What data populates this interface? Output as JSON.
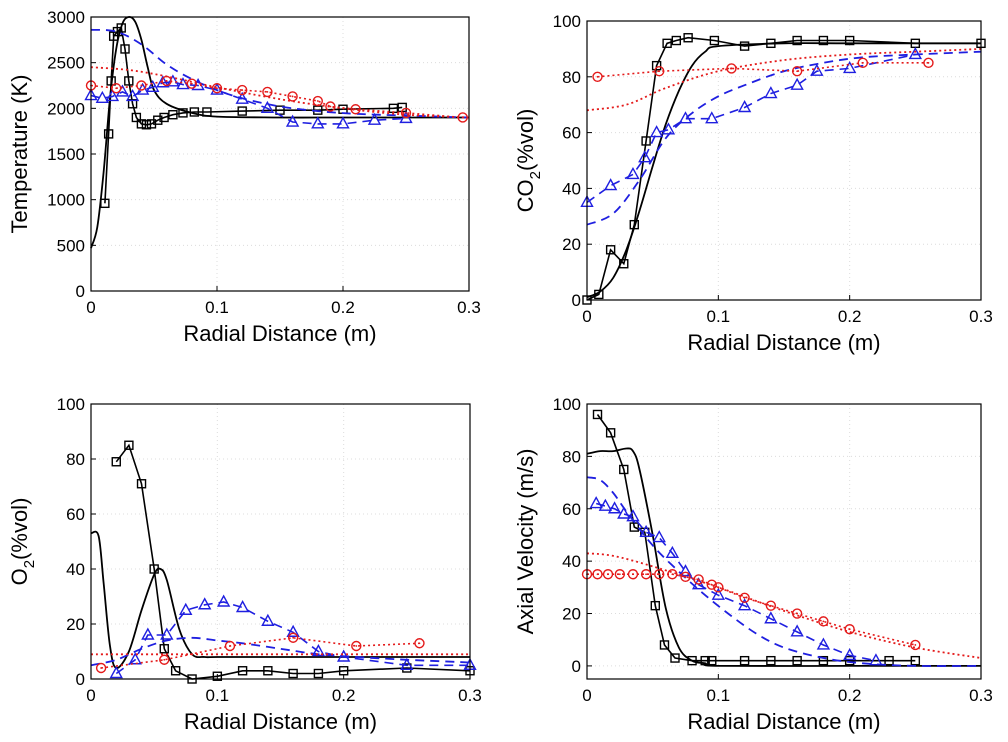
{
  "chart_data": [
    {
      "id": "temperature",
      "type": "line",
      "xlabel": "Radial Distance (m)",
      "ylabel": "Temperature (K)",
      "xlim": [
        0,
        0.3
      ],
      "ylim": [
        0,
        3000
      ],
      "xticks": [
        0,
        0.1,
        0.2,
        0.3
      ],
      "xtick_labels": [
        "0",
        "0.1",
        "0.2",
        "0.3"
      ],
      "yticks": [
        0,
        500,
        1000,
        1500,
        2000,
        2500,
        3000
      ],
      "ytick_labels": [
        "0",
        "500",
        "1000",
        "1500",
        "2000",
        "2500",
        "3000"
      ],
      "grid": true,
      "series": [
        {
          "style": "black-solid-line",
          "color": "#000000",
          "dash": "solid",
          "marker": "none",
          "x": [
            0,
            0.005,
            0.01,
            0.015,
            0.02,
            0.025,
            0.03,
            0.035,
            0.04,
            0.045,
            0.05,
            0.06,
            0.08,
            0.1,
            0.15,
            0.2,
            0.25,
            0.3
          ],
          "y": [
            470,
            700,
            1300,
            2100,
            2650,
            2930,
            3000,
            2950,
            2750,
            2450,
            2200,
            2050,
            1950,
            1910,
            1900,
            1900,
            1900,
            1900
          ]
        },
        {
          "style": "black-square-markers",
          "color": "#000000",
          "dash": "solid",
          "marker": "square",
          "x": [
            0.011,
            0.014,
            0.016,
            0.018,
            0.021,
            0.024,
            0.027,
            0.03,
            0.033,
            0.036,
            0.04,
            0.044,
            0.048,
            0.053,
            0.058,
            0.065,
            0.073,
            0.082,
            0.092,
            0.12,
            0.15,
            0.18,
            0.2,
            0.24,
            0.247
          ],
          "y": [
            960,
            1720,
            2300,
            2790,
            2840,
            2880,
            2650,
            2300,
            2050,
            1900,
            1830,
            1820,
            1830,
            1870,
            1900,
            1930,
            1950,
            1960,
            1960,
            1970,
            1980,
            1980,
            1990,
            2000,
            2010
          ]
        },
        {
          "style": "blue-dashed-line",
          "color": "#1f1fe0",
          "dash": "dashed",
          "marker": "none",
          "x": [
            0,
            0.02,
            0.04,
            0.06,
            0.08,
            0.1,
            0.12,
            0.15,
            0.18,
            0.21,
            0.25,
            0.3
          ],
          "y": [
            2860,
            2840,
            2700,
            2480,
            2320,
            2200,
            2110,
            2020,
            1970,
            1940,
            1920,
            1900
          ]
        },
        {
          "style": "blue-triangle-markers",
          "color": "#1f1fe0",
          "dash": "dashed",
          "marker": "triangle",
          "x": [
            0,
            0.009,
            0.017,
            0.025,
            0.033,
            0.041,
            0.049,
            0.057,
            0.065,
            0.073,
            0.085,
            0.1,
            0.12,
            0.14,
            0.16,
            0.18,
            0.2,
            0.225,
            0.25
          ],
          "y": [
            2140,
            2110,
            2130,
            2180,
            2130,
            2200,
            2230,
            2280,
            2290,
            2260,
            2250,
            2200,
            2100,
            2000,
            1850,
            1830,
            1830,
            1870,
            1890
          ]
        },
        {
          "style": "red-dotted-line",
          "color": "#e41a1a",
          "dash": "dotted",
          "marker": "none",
          "x": [
            0,
            0.03,
            0.06,
            0.1,
            0.15,
            0.2,
            0.25,
            0.3
          ],
          "y": [
            2450,
            2420,
            2350,
            2230,
            2100,
            2000,
            1930,
            1900
          ]
        },
        {
          "style": "red-circle-markers",
          "color": "#e41a1a",
          "dash": "dotted",
          "marker": "circle",
          "x": [
            0,
            0.02,
            0.04,
            0.06,
            0.08,
            0.1,
            0.12,
            0.14,
            0.16,
            0.18,
            0.19,
            0.21,
            0.25,
            0.295
          ],
          "y": [
            2250,
            2220,
            2250,
            2300,
            2270,
            2220,
            2200,
            2180,
            2130,
            2080,
            2020,
            1990,
            1950,
            1900
          ]
        }
      ]
    },
    {
      "id": "co2",
      "type": "line",
      "xlabel": "Radial Distance (m)",
      "ylabel_main": "CO",
      "ylabel_sub": "2",
      "ylabel_rest": "(%vol)",
      "xlim": [
        0,
        0.3
      ],
      "ylim": [
        0,
        100
      ],
      "xticks": [
        0,
        0.1,
        0.2,
        0.3
      ],
      "xtick_labels": [
        "0",
        "0.1",
        "0.2",
        "0.3"
      ],
      "yticks": [
        0,
        20,
        40,
        60,
        80,
        100
      ],
      "ytick_labels": [
        "0",
        "20",
        "40",
        "60",
        "80",
        "100"
      ],
      "grid": true,
      "series": [
        {
          "style": "black-solid-line",
          "color": "#000000",
          "dash": "solid",
          "marker": "none",
          "x": [
            0,
            0.01,
            0.02,
            0.03,
            0.04,
            0.05,
            0.06,
            0.07,
            0.08,
            0.09,
            0.1,
            0.15,
            0.2,
            0.3
          ],
          "y": [
            1,
            3,
            8,
            18,
            32,
            48,
            63,
            75,
            84,
            89,
            91,
            92,
            92,
            92
          ]
        },
        {
          "style": "black-square-markers",
          "color": "#000000",
          "dash": "solid",
          "marker": "square",
          "x": [
            0,
            0.009,
            0.018,
            0.028,
            0.036,
            0.045,
            0.053,
            0.061,
            0.068,
            0.077,
            0.097,
            0.12,
            0.14,
            0.16,
            0.18,
            0.2,
            0.25,
            0.3
          ],
          "y": [
            0,
            2,
            18,
            13,
            27,
            57,
            84,
            92,
            93,
            94,
            93,
            91,
            92,
            93,
            93,
            93,
            92,
            92
          ]
        },
        {
          "style": "blue-dashed-line",
          "color": "#1f1fe0",
          "dash": "dashed",
          "marker": "none",
          "x": [
            0,
            0.02,
            0.04,
            0.06,
            0.08,
            0.1,
            0.12,
            0.15,
            0.18,
            0.21,
            0.25,
            0.3
          ],
          "y": [
            27,
            31,
            43,
            58,
            67,
            73,
            77,
            82,
            85,
            87,
            88,
            89
          ]
        },
        {
          "style": "blue-triangle-markers",
          "color": "#1f1fe0",
          "dash": "dashed",
          "marker": "triangle",
          "x": [
            0,
            0.018,
            0.035,
            0.044,
            0.053,
            0.062,
            0.075,
            0.095,
            0.12,
            0.14,
            0.16,
            0.175,
            0.2,
            0.25
          ],
          "y": [
            35,
            41,
            45,
            51,
            60,
            61,
            65,
            65,
            69,
            74,
            77,
            82,
            83,
            88
          ]
        },
        {
          "style": "red-dotted-line",
          "color": "#e41a1a",
          "dash": "dotted",
          "marker": "none",
          "x": [
            0,
            0.03,
            0.06,
            0.1,
            0.15,
            0.2,
            0.25,
            0.3
          ],
          "y": [
            68,
            70,
            76,
            82,
            86,
            88,
            89,
            90
          ]
        },
        {
          "style": "red-circle-markers",
          "color": "#e41a1a",
          "dash": "dotted",
          "marker": "circle",
          "x": [
            0.008,
            0.055,
            0.11,
            0.16,
            0.21,
            0.26
          ],
          "y": [
            80,
            82,
            83,
            82,
            85,
            85
          ]
        }
      ]
    },
    {
      "id": "o2",
      "type": "line",
      "xlabel": "Radial Distance (m)",
      "ylabel_main": "O",
      "ylabel_sub": "2",
      "ylabel_rest": "(%vol)",
      "xlim": [
        0,
        0.3
      ],
      "ylim": [
        0,
        100
      ],
      "xticks": [
        0,
        0.1,
        0.2,
        0.3
      ],
      "xtick_labels": [
        "0",
        "0.1",
        "0.2",
        "0.3"
      ],
      "yticks": [
        0,
        20,
        40,
        60,
        80,
        100
      ],
      "ytick_labels": [
        "0",
        "20",
        "40",
        "60",
        "80",
        "100"
      ],
      "grid": true,
      "series": [
        {
          "style": "black-solid-line",
          "color": "#000000",
          "dash": "solid",
          "marker": "none",
          "x": [
            0,
            0.006,
            0.01,
            0.015,
            0.02,
            0.03,
            0.04,
            0.05,
            0.055,
            0.06,
            0.07,
            0.08,
            0.09,
            0.1,
            0.15,
            0.2,
            0.25,
            0.3
          ],
          "y": [
            53,
            52,
            35,
            12,
            4,
            10,
            25,
            38,
            40,
            36,
            18,
            9,
            8,
            8,
            8,
            8,
            8,
            8
          ]
        },
        {
          "style": "black-square-markers",
          "color": "#000000",
          "dash": "solid",
          "marker": "square",
          "x": [
            0.02,
            0.03,
            0.04,
            0.05,
            0.058,
            0.067,
            0.08,
            0.1,
            0.12,
            0.14,
            0.16,
            0.18,
            0.2,
            0.25,
            0.3
          ],
          "y": [
            79,
            85,
            71,
            40,
            11,
            3,
            0,
            1,
            3,
            3,
            2,
            2,
            3,
            4,
            3
          ]
        },
        {
          "style": "blue-dashed-line",
          "color": "#1f1fe0",
          "dash": "dashed",
          "marker": "none",
          "x": [
            0,
            0.02,
            0.04,
            0.06,
            0.08,
            0.1,
            0.12,
            0.15,
            0.18,
            0.21,
            0.25,
            0.3
          ],
          "y": [
            5,
            7,
            11,
            14,
            15,
            14,
            13,
            11,
            9,
            8,
            7,
            6
          ]
        },
        {
          "style": "blue-triangle-markers",
          "color": "#1f1fe0",
          "dash": "dashed",
          "marker": "triangle",
          "x": [
            0.02,
            0.035,
            0.045,
            0.06,
            0.075,
            0.09,
            0.105,
            0.12,
            0.14,
            0.16,
            0.18,
            0.2,
            0.25,
            0.3
          ],
          "y": [
            2,
            7,
            16,
            16,
            25,
            27,
            28,
            26,
            21,
            17,
            10,
            8,
            5,
            5
          ]
        },
        {
          "style": "red-dotted-line",
          "color": "#e41a1a",
          "dash": "dotted",
          "marker": "none",
          "x": [
            0,
            0.05,
            0.1,
            0.15,
            0.2,
            0.25,
            0.3
          ],
          "y": [
            9,
            9,
            9,
            9,
            9,
            9,
            9
          ]
        },
        {
          "style": "red-circle-markers",
          "color": "#e41a1a",
          "dash": "dotted",
          "marker": "circle",
          "x": [
            0.008,
            0.058,
            0.11,
            0.16,
            0.21,
            0.26
          ],
          "y": [
            4,
            7,
            12,
            15,
            12,
            13
          ]
        }
      ]
    },
    {
      "id": "axial-velocity",
      "type": "line",
      "xlabel": "Radial Distance (m)",
      "ylabel": "Axial Velocity (m/s)",
      "xlim": [
        0,
        0.3
      ],
      "ylim": [
        -5,
        100
      ],
      "xticks": [
        0,
        0.1,
        0.2,
        0.3
      ],
      "xtick_labels": [
        "0",
        "0.1",
        "0.2",
        "0.3"
      ],
      "yticks": [
        0,
        20,
        40,
        60,
        80,
        100
      ],
      "ytick_labels": [
        "0",
        "20",
        "40",
        "60",
        "80",
        "100"
      ],
      "grid": true,
      "series": [
        {
          "style": "black-solid-line",
          "color": "#000000",
          "dash": "solid",
          "marker": "none",
          "x": [
            0,
            0.01,
            0.02,
            0.03,
            0.035,
            0.04,
            0.05,
            0.06,
            0.07,
            0.08,
            0.09,
            0.1,
            0.2,
            0.3
          ],
          "y": [
            81,
            82,
            82,
            83,
            82,
            75,
            50,
            22,
            7,
            2,
            1,
            0,
            0,
            0
          ]
        },
        {
          "style": "black-square-markers",
          "color": "#000000",
          "dash": "solid",
          "marker": "square",
          "x": [
            0.008,
            0.018,
            0.028,
            0.036,
            0.044,
            0.052,
            0.059,
            0.067,
            0.08,
            0.09,
            0.095,
            0.12,
            0.14,
            0.16,
            0.18,
            0.2,
            0.23,
            0.25
          ],
          "y": [
            96,
            89,
            75,
            53,
            51,
            23,
            8,
            3,
            2,
            2,
            2,
            2,
            2,
            2,
            2,
            2,
            2,
            2
          ]
        },
        {
          "style": "blue-dashed-line",
          "color": "#1f1fe0",
          "dash": "dashed",
          "marker": "none",
          "x": [
            0,
            0.01,
            0.02,
            0.03,
            0.05,
            0.07,
            0.09,
            0.11,
            0.13,
            0.15,
            0.18,
            0.21,
            0.25,
            0.3
          ],
          "y": [
            72,
            71,
            66,
            59,
            46,
            36,
            27,
            19,
            12,
            7,
            3,
            1,
            0,
            0
          ]
        },
        {
          "style": "blue-triangle-markers",
          "color": "#1f1fe0",
          "dash": "dashed",
          "marker": "triangle",
          "x": [
            0.007,
            0.014,
            0.021,
            0.028,
            0.035,
            0.045,
            0.055,
            0.065,
            0.075,
            0.085,
            0.1,
            0.12,
            0.14,
            0.16,
            0.18,
            0.2,
            0.22
          ],
          "y": [
            62,
            61,
            60,
            58,
            57,
            51,
            49,
            43,
            36,
            31,
            27,
            23,
            18,
            13,
            8,
            4,
            2
          ]
        },
        {
          "style": "red-dotted-line",
          "color": "#e41a1a",
          "dash": "dotted",
          "marker": "none",
          "x": [
            0,
            0.02,
            0.05,
            0.1,
            0.15,
            0.2,
            0.25,
            0.3
          ],
          "y": [
            43,
            42,
            38,
            30,
            21,
            13,
            7,
            3
          ]
        },
        {
          "style": "red-circle-markers",
          "color": "#e41a1a",
          "dash": "dotted",
          "marker": "circle",
          "x": [
            0,
            0.008,
            0.016,
            0.025,
            0.035,
            0.045,
            0.055,
            0.065,
            0.075,
            0.085,
            0.095,
            0.1,
            0.12,
            0.14,
            0.16,
            0.18,
            0.2,
            0.25
          ],
          "y": [
            35,
            35,
            35,
            35,
            35,
            35,
            35,
            35,
            34,
            33,
            31,
            30,
            26,
            23,
            20,
            17,
            14,
            8
          ]
        }
      ]
    }
  ]
}
